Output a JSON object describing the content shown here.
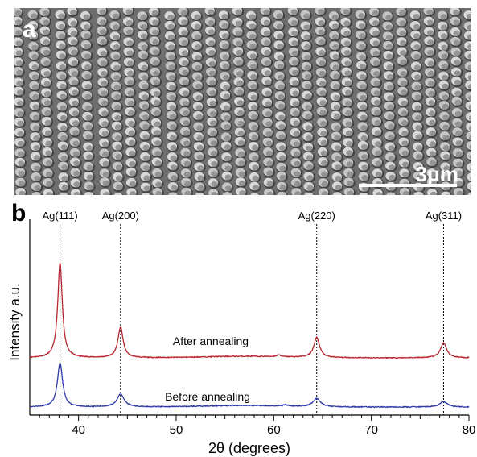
{
  "panel_a": {
    "letter": "a",
    "scale_bar": "3μm"
  },
  "panel_b": {
    "letter": "b"
  },
  "chart_data": {
    "type": "line",
    "title": "",
    "xlabel": "2θ (degrees)",
    "ylabel": "Intensity a.u.",
    "xlim": [
      35,
      80
    ],
    "x_ticks": [
      40,
      50,
      60,
      70,
      80
    ],
    "y_ticks_shown": false,
    "grid": false,
    "peak_markers": [
      {
        "label": "Ag(111)",
        "x": 38.1
      },
      {
        "label": "Ag(200)",
        "x": 44.3
      },
      {
        "label": "Ag(220)",
        "x": 64.4
      },
      {
        "label": "Ag(311)",
        "x": 77.4
      }
    ],
    "series": [
      {
        "name": "After annealing",
        "color": "#b5262e",
        "baseline": 1.0,
        "peaks": [
          {
            "x": 38.1,
            "height": 1.93,
            "width": 0.28
          },
          {
            "x": 44.3,
            "height": 0.62,
            "width": 0.32
          },
          {
            "x": 60.5,
            "height": 0.04,
            "width": 0.25
          },
          {
            "x": 64.4,
            "height": 0.41,
            "width": 0.35
          },
          {
            "x": 77.4,
            "height": 0.3,
            "width": 0.38
          }
        ]
      },
      {
        "name": "Before annealing",
        "color": "#2f3aa8",
        "baseline": 0.0,
        "peaks": [
          {
            "x": 38.1,
            "height": 0.9,
            "width": 0.32
          },
          {
            "x": 44.3,
            "height": 0.26,
            "width": 0.45
          },
          {
            "x": 61.2,
            "height": 0.03,
            "width": 0.25
          },
          {
            "x": 64.4,
            "height": 0.17,
            "width": 0.45
          },
          {
            "x": 77.4,
            "height": 0.11,
            "width": 0.45
          }
        ]
      }
    ]
  }
}
